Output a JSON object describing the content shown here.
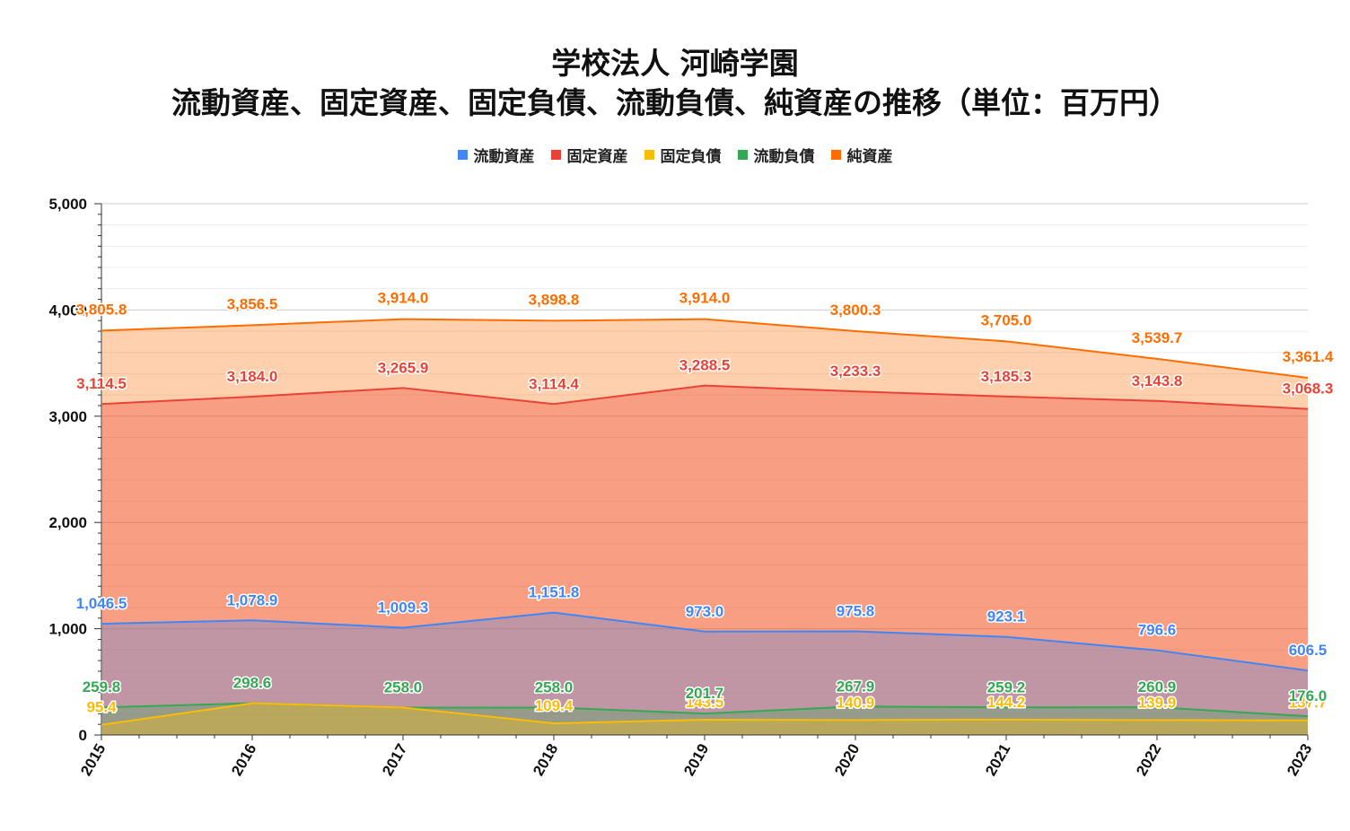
{
  "chart_data": {
    "type": "area",
    "title": "学校法人 河崎学園",
    "subtitle": "流動資産、固定資産、固定負債、流動負債、純資産の推移（単位：百万円）",
    "x": [
      "2015",
      "2016",
      "2017",
      "2018",
      "2019",
      "2020",
      "2021",
      "2022",
      "2023"
    ],
    "ylim": [
      0,
      5000
    ],
    "yticks": [
      "0",
      "1,000",
      "2,000",
      "3,000",
      "4,000",
      "5,000"
    ],
    "grid": true,
    "legend_position": "top",
    "series": [
      {
        "name": "流動資産",
        "color": "#4285f4",
        "values": [
          1046.5,
          1078.9,
          1009.3,
          1151.8,
          973.0,
          975.8,
          923.1,
          796.6,
          606.5
        ],
        "labels": [
          "1,046.5",
          "1,078.9",
          "1,009.3",
          "1,151.8",
          "973.0",
          "975.8",
          "923.1",
          "796.6",
          "606.5"
        ]
      },
      {
        "name": "固定資産",
        "color": "#ea4335",
        "values": [
          3114.5,
          3184.0,
          3265.9,
          3114.4,
          3288.5,
          3233.3,
          3185.3,
          3143.8,
          3068.3
        ],
        "labels": [
          "3,114.5",
          "3,184.0",
          "3,265.9",
          "3,114.4",
          "3,288.5",
          "3,233.3",
          "3,185.3",
          "3,143.8",
          "3,068.3"
        ]
      },
      {
        "name": "固定負債",
        "color": "#fbbc04",
        "values": [
          95.4,
          298.6,
          258.0,
          109.4,
          143.5,
          140.9,
          144.2,
          139.9,
          137.7
        ],
        "labels": [
          "95.4",
          "",
          "",
          "109.4",
          "143.5",
          "140.9",
          "144.2",
          "139.9",
          "137.7"
        ]
      },
      {
        "name": "流動負債",
        "color": "#34a853",
        "values": [
          259.8,
          298.6,
          258.0,
          258.0,
          201.7,
          267.9,
          259.2,
          260.9,
          176.0
        ],
        "labels": [
          "259.8",
          "298.6",
          "258.0",
          "258.0",
          "201.7",
          "267.9",
          "259.2",
          "260.9",
          "176.0"
        ]
      },
      {
        "name": "純資産",
        "color": "#ff6d01",
        "values": [
          3805.8,
          3856.5,
          3914.0,
          3898.8,
          3914.0,
          3800.3,
          3705.0,
          3539.7,
          3361.4
        ],
        "labels": [
          "3,805.8",
          "3,856.5",
          "3,914.0",
          "3,898.8",
          "3,914.0",
          "3,800.3",
          "3,705.0",
          "3,539.7",
          "3,361.4"
        ]
      }
    ]
  }
}
